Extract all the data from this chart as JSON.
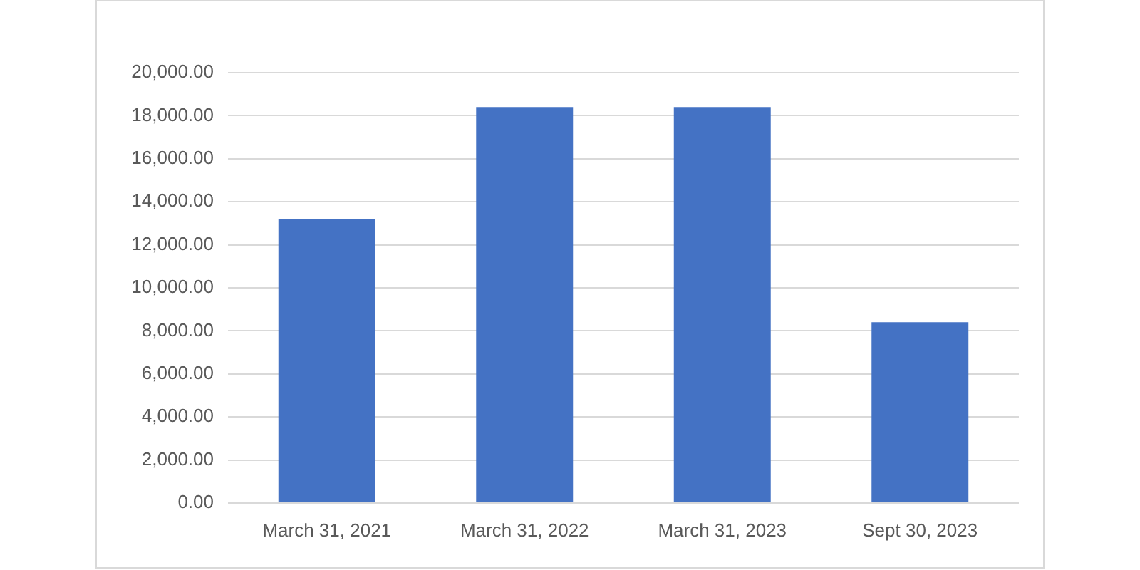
{
  "chart_data": {
    "type": "bar",
    "categories": [
      "March 31, 2021",
      "March 31, 2022",
      "March 31, 2023",
      "Sept 30, 2023"
    ],
    "values": [
      13200,
      18400,
      18400,
      8400
    ],
    "color": "#4472c4",
    "ylim": [
      0,
      20000
    ],
    "yticks": [
      {
        "value": 0,
        "label": "0.00"
      },
      {
        "value": 2000,
        "label": "2,000.00"
      },
      {
        "value": 4000,
        "label": "4,000.00"
      },
      {
        "value": 6000,
        "label": "6,000.00"
      },
      {
        "value": 8000,
        "label": "8,000.00"
      },
      {
        "value": 10000,
        "label": "10,000.00"
      },
      {
        "value": 12000,
        "label": "12,000.00"
      },
      {
        "value": 14000,
        "label": "14,000.00"
      },
      {
        "value": 16000,
        "label": "16,000.00"
      },
      {
        "value": 18000,
        "label": "18,000.00"
      },
      {
        "value": 20000,
        "label": "20,000.00"
      }
    ],
    "grid": "y"
  }
}
